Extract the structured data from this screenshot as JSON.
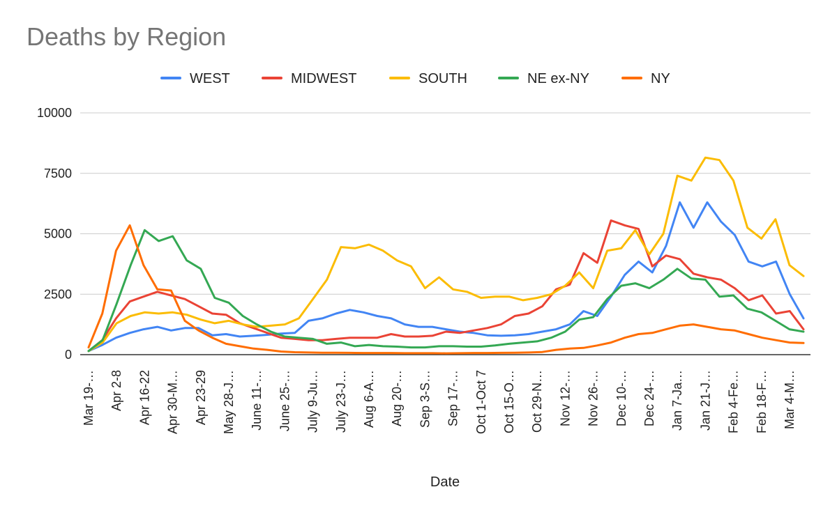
{
  "chart_data": {
    "type": "line",
    "title": "Deaths by Region",
    "xlabel": "Date",
    "ylabel": "",
    "ylim": [
      0,
      10000
    ],
    "yticks": [
      0,
      2500,
      5000,
      7500,
      10000
    ],
    "grid": true,
    "legend_position": "top",
    "x_tick_labels": [
      "Mar 19-…",
      "Apr 2-8",
      "Apr 16-22",
      "Apr 30-M…",
      "Apr 23-29",
      "May 28-J…",
      "June 11-…",
      "June 25-…",
      "July 9-Ju…",
      "July 23-J…",
      "Aug 6-A…",
      "Aug 20-…",
      "Sep 3-S…",
      "Sep 17-…",
      "Oct 1-Oct 7",
      "Oct 15-O…",
      "Oct 29-N…",
      "Nov 12-…",
      "Nov 26-…",
      "Dec 10-…",
      "Dec 24-…",
      "Jan 7-Ja…",
      "Jan 21-J…",
      "Feb 4-Fe…",
      "Feb 18-F…",
      "Mar 4-M…"
    ],
    "series": [
      {
        "name": "WEST",
        "color": "#4285f4",
        "values": [
          150,
          400,
          700,
          900,
          1050,
          1150,
          1000,
          1100,
          1100,
          800,
          850,
          750,
          780,
          820,
          870,
          900,
          1400,
          1500,
          1700,
          1850,
          1750,
          1600,
          1500,
          1250,
          1150,
          1150,
          1050,
          950,
          900,
          800,
          780,
          800,
          850,
          950,
          1050,
          1250,
          1800,
          1600,
          2400,
          3300,
          3850,
          3400,
          4500,
          6300,
          5250,
          6300,
          5500,
          4950,
          3850,
          3650,
          3850,
          2500,
          1500
        ]
      },
      {
        "name": "MIDWEST",
        "color": "#ea4335",
        "values": [
          150,
          600,
          1500,
          2200,
          2400,
          2600,
          2450,
          2300,
          2000,
          1700,
          1650,
          1300,
          1100,
          900,
          700,
          650,
          600,
          600,
          650,
          700,
          700,
          700,
          850,
          750,
          750,
          780,
          950,
          900,
          1000,
          1100,
          1250,
          1600,
          1700,
          2000,
          2700,
          2900,
          4200,
          3800,
          5550,
          5350,
          5200,
          3650,
          4100,
          3950,
          3350,
          3200,
          3100,
          2750,
          2250,
          2450,
          1700,
          1800,
          1050
        ]
      },
      {
        "name": "SOUTH",
        "color": "#fbbc04",
        "values": [
          150,
          500,
          1300,
          1600,
          1750,
          1700,
          1750,
          1650,
          1450,
          1300,
          1400,
          1250,
          1150,
          1200,
          1250,
          1500,
          2300,
          3100,
          4450,
          4400,
          4550,
          4300,
          3900,
          3650,
          2750,
          3200,
          2700,
          2600,
          2350,
          2400,
          2400,
          2250,
          2350,
          2500,
          2850,
          3400,
          2750,
          4300,
          4400,
          5150,
          4150,
          5000,
          7400,
          7200,
          8150,
          8050,
          7200,
          5250,
          4800,
          5600,
          3700,
          3250
        ]
      },
      {
        "name": "NE ex-NY",
        "color": "#34a853",
        "values": [
          150,
          600,
          2100,
          3700,
          5150,
          4700,
          4900,
          3900,
          3550,
          2350,
          2150,
          1600,
          1250,
          950,
          750,
          700,
          650,
          450,
          500,
          350,
          400,
          350,
          330,
          300,
          300,
          350,
          350,
          330,
          330,
          380,
          450,
          500,
          550,
          700,
          950,
          1450,
          1550,
          2300,
          2850,
          2950,
          2750,
          3100,
          3550,
          3150,
          3100,
          2400,
          2450,
          1900,
          1750,
          1400,
          1050,
          950
        ]
      },
      {
        "name": "NY",
        "color": "#ff6d01",
        "values": [
          300,
          1700,
          4300,
          5350,
          3700,
          2700,
          2650,
          1400,
          1000,
          700,
          450,
          350,
          250,
          200,
          130,
          100,
          90,
          80,
          80,
          75,
          70,
          70,
          70,
          60,
          60,
          60,
          55,
          60,
          70,
          70,
          75,
          80,
          90,
          110,
          200,
          250,
          280,
          380,
          500,
          700,
          850,
          900,
          1050,
          1200,
          1250,
          1150,
          1050,
          1000,
          850,
          700,
          600,
          500,
          480
        ]
      }
    ]
  }
}
